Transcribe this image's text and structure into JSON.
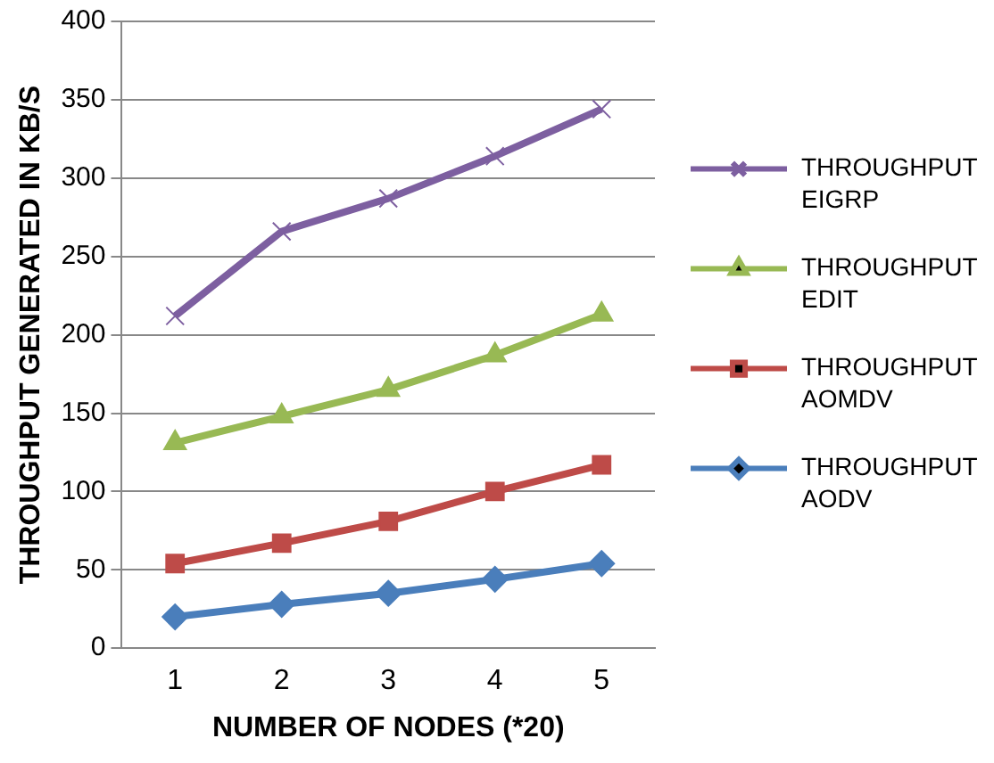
{
  "chart_data": {
    "type": "line",
    "xlabel": "NUMBER OF NODES (*20)",
    "ylabel": "THROUGHPUT GENERATED IN KB/S",
    "categories": [
      "1",
      "2",
      "3",
      "4",
      "5"
    ],
    "ylim": [
      0,
      400
    ],
    "yticks": [
      0,
      50,
      100,
      150,
      200,
      250,
      300,
      350,
      400
    ],
    "grid": "y",
    "legend": "right",
    "series": [
      {
        "name": "THROUGHPUT AODV",
        "color": "#4a7ebb",
        "marker": "diamond",
        "values": [
          20,
          28,
          35,
          44,
          54
        ]
      },
      {
        "name": "THROUGHPUT AOMDV",
        "color": "#be4b48",
        "marker": "square",
        "values": [
          54,
          67,
          81,
          100,
          117
        ]
      },
      {
        "name": "THROUGHPUT EDIT",
        "color": "#98b954",
        "marker": "triangle",
        "values": [
          131,
          148,
          165,
          187,
          213
        ]
      },
      {
        "name": "THROUGHPUT EIGRP",
        "color": "#7d5fa0",
        "marker": "cross",
        "values": [
          212,
          266,
          287,
          314,
          344
        ]
      }
    ]
  }
}
